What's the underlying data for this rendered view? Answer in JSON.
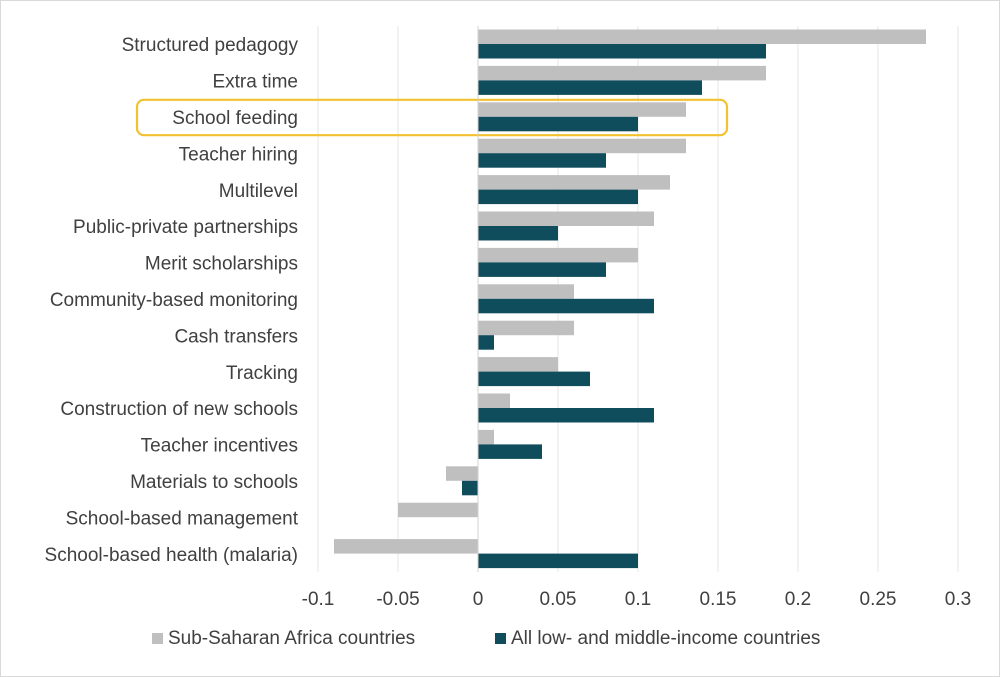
{
  "chart_data": {
    "type": "bar",
    "orientation": "horizontal",
    "categories": [
      "Structured pedagogy",
      "Extra time",
      "School feeding",
      "Teacher hiring",
      "Multilevel",
      "Public-private partnerships",
      "Merit scholarships",
      "Community-based monitoring",
      "Cash transfers",
      "Tracking",
      "Construction of new schools",
      "Teacher incentives",
      "Materials to schools",
      "School-based management",
      "School-based health (malaria)"
    ],
    "series": [
      {
        "name": "Sub-Saharan Africa countries",
        "color": "#bfbfbf",
        "values": [
          0.28,
          0.18,
          0.13,
          0.13,
          0.12,
          0.11,
          0.1,
          0.06,
          0.06,
          0.05,
          0.02,
          0.01,
          -0.02,
          -0.05,
          -0.09
        ]
      },
      {
        "name": "All low- and middle-income countries",
        "color": "#0f4c5c",
        "values": [
          0.18,
          0.14,
          0.1,
          0.08,
          0.1,
          0.05,
          0.08,
          0.11,
          0.01,
          0.07,
          0.11,
          0.04,
          -0.01,
          null,
          0.1
        ]
      }
    ],
    "xlim": [
      -0.1,
      0.3
    ],
    "xticks": [
      "-0.1",
      "-0.05",
      "0",
      "0.05",
      "0.1",
      "0.15",
      "0.2",
      "0.25",
      "0.3"
    ],
    "xtick_values": [
      -0.1,
      -0.05,
      0,
      0.05,
      0.1,
      0.15,
      0.2,
      0.25,
      0.3
    ],
    "grid": true,
    "legend": "bottom",
    "highlight": {
      "category": "School feeding",
      "color": "#f2c12e"
    }
  }
}
